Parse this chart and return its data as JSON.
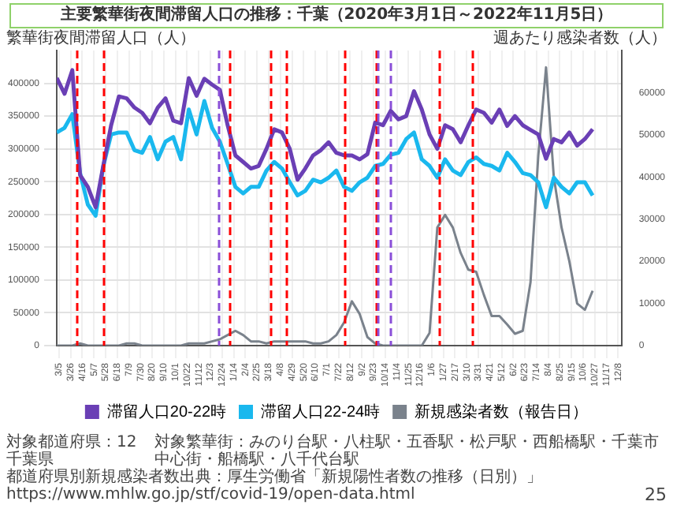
{
  "chart_data": {
    "type": "line",
    "title": "主要繁華街夜間滞留人口の推移：千葉（2020年3月1日～2022年11月5日）",
    "ylabel": "繁華街夜間滞留人口（人）",
    "y2label": "週あたり感染者数（人）",
    "x": [
      "2020-03-01",
      "2020-03-15",
      "2020-03-29",
      "2020-04-12",
      "2020-04-26",
      "2020-05-10",
      "2020-05-24",
      "2020-06-07",
      "2020-06-21",
      "2020-07-05",
      "2020-07-19",
      "2020-08-02",
      "2020-08-16",
      "2020-08-30",
      "2020-09-13",
      "2020-09-27",
      "2020-10-11",
      "2020-10-25",
      "2020-11-08",
      "2020-11-22",
      "2020-12-06",
      "2020-12-20",
      "2021-01-03",
      "2021-01-17",
      "2021-01-31",
      "2021-02-14",
      "2021-02-28",
      "2021-03-14",
      "2021-03-28",
      "2021-04-11",
      "2021-04-25",
      "2021-05-09",
      "2021-05-23",
      "2021-06-06",
      "2021-06-20",
      "2021-07-04",
      "2021-07-18",
      "2021-08-01",
      "2021-08-15",
      "2021-08-29",
      "2021-09-12",
      "2021-09-26",
      "2021-10-10",
      "2021-10-24",
      "2021-11-07",
      "2021-11-21",
      "2021-12-05",
      "2021-12-19",
      "2022-01-02",
      "2022-01-16",
      "2022-01-30",
      "2022-02-13",
      "2022-02-27",
      "2022-03-13",
      "2022-03-27",
      "2022-04-10",
      "2022-04-24",
      "2022-05-08",
      "2022-05-22",
      "2022-06-05",
      "2022-06-19",
      "2022-07-03",
      "2022-07-17",
      "2022-07-31",
      "2022-08-14",
      "2022-08-28",
      "2022-09-11",
      "2022-09-25",
      "2022-10-09",
      "2022-10-23"
    ],
    "series": [
      {
        "name": "滞留人口20-22時",
        "color": "#6a3fb5",
        "values": [
          408000,
          384000,
          420000,
          260000,
          242000,
          211000,
          275000,
          336000,
          380000,
          377000,
          363000,
          355000,
          339000,
          363000,
          377000,
          343000,
          339000,
          408000,
          381000,
          407000,
          398000,
          390000,
          336000,
          290000,
          280000,
          270000,
          274000,
          300000,
          330000,
          325000,
          300000,
          253000,
          270000,
          290000,
          298000,
          310000,
          294000,
          290000,
          290000,
          284000,
          292000,
          340000,
          336000,
          358000,
          345000,
          350000,
          388000,
          360000,
          322000,
          300000,
          336000,
          330000,
          310000,
          336000,
          360000,
          355000,
          340000,
          360000,
          335000,
          350000,
          336000,
          329000,
          322000,
          285000,
          315000,
          310000,
          325000,
          305000,
          315000,
          330000
        ]
      },
      {
        "name": "滞留人口22-24時",
        "color": "#1ab8ee",
        "values": [
          325000,
          332000,
          353000,
          263000,
          215000,
          198000,
          274000,
          322000,
          325000,
          325000,
          298000,
          294000,
          318000,
          284000,
          311000,
          318000,
          284000,
          360000,
          322000,
          373000,
          332000,
          311000,
          277000,
          242000,
          232000,
          242000,
          242000,
          267000,
          280000,
          270000,
          249000,
          229000,
          236000,
          253000,
          249000,
          256000,
          267000,
          242000,
          236000,
          249000,
          256000,
          274000,
          277000,
          291000,
          294000,
          315000,
          325000,
          284000,
          274000,
          256000,
          284000,
          267000,
          260000,
          280000,
          287000,
          277000,
          274000,
          267000,
          294000,
          280000,
          263000,
          260000,
          249000,
          211000,
          256000,
          242000,
          232000,
          249000,
          249000,
          229000
        ]
      },
      {
        "name": "新規感染者数（報告日）",
        "color": "#7a828c",
        "axis": "y2",
        "values": [
          0,
          0,
          0,
          500,
          0,
          0,
          0,
          0,
          0,
          500,
          500,
          0,
          0,
          0,
          0,
          0,
          0,
          500,
          500,
          500,
          1000,
          1500,
          2500,
          3500,
          2500,
          1000,
          1000,
          500,
          1000,
          1000,
          1000,
          1000,
          1000,
          500,
          500,
          1000,
          2500,
          5500,
          10500,
          7500,
          2000,
          500,
          0,
          0,
          0,
          0,
          0,
          0,
          3000,
          28000,
          31000,
          28000,
          22000,
          18000,
          17500,
          12000,
          7000,
          7000,
          5000,
          2800,
          3500,
          15000,
          45000,
          66000,
          40000,
          28000,
          20000,
          10000,
          8500,
          13000
        ]
      }
    ],
    "xlim": [
      "2020-03-01",
      "2022-12-14"
    ],
    "xticks": [
      {
        "value": "2020-03-05",
        "label": "3/5"
      },
      {
        "value": "2020-03-26",
        "label": "3/26"
      },
      {
        "value": "2020-04-16",
        "label": "4/16"
      },
      {
        "value": "2020-05-07",
        "label": "5/7"
      },
      {
        "value": "2020-05-28",
        "label": "5/28"
      },
      {
        "value": "2020-06-18",
        "label": "6/18"
      },
      {
        "value": "2020-07-09",
        "label": "7/9"
      },
      {
        "value": "2020-07-30",
        "label": "7/30"
      },
      {
        "value": "2020-08-20",
        "label": "8/20"
      },
      {
        "value": "2020-09-10",
        "label": "9/10"
      },
      {
        "value": "2020-10-01",
        "label": "10/1"
      },
      {
        "value": "2020-10-22",
        "label": "10/22"
      },
      {
        "value": "2020-11-12",
        "label": "11/12"
      },
      {
        "value": "2020-12-03",
        "label": "12/3"
      },
      {
        "value": "2020-12-24",
        "label": "12/24"
      },
      {
        "value": "2021-01-14",
        "label": "1/14"
      },
      {
        "value": "2021-02-04",
        "label": "2/4"
      },
      {
        "value": "2021-02-25",
        "label": "2/25"
      },
      {
        "value": "2021-03-18",
        "label": "3/18"
      },
      {
        "value": "2021-04-08",
        "label": "4/8"
      },
      {
        "value": "2021-04-29",
        "label": "4/29"
      },
      {
        "value": "2021-05-20",
        "label": "5/20"
      },
      {
        "value": "2021-06-10",
        "label": "6/10"
      },
      {
        "value": "2021-07-01",
        "label": "7/1"
      },
      {
        "value": "2021-07-22",
        "label": "7/22"
      },
      {
        "value": "2021-08-12",
        "label": "8/12"
      },
      {
        "value": "2021-09-02",
        "label": "9/2"
      },
      {
        "value": "2021-09-23",
        "label": "9/23"
      },
      {
        "value": "2021-10-14",
        "label": "10/14"
      },
      {
        "value": "2021-11-04",
        "label": "11/4"
      },
      {
        "value": "2021-11-25",
        "label": "11/25"
      },
      {
        "value": "2021-12-16",
        "label": "12/16"
      },
      {
        "value": "2022-01-06",
        "label": "1/6"
      },
      {
        "value": "2022-01-27",
        "label": "1/27"
      },
      {
        "value": "2022-02-17",
        "label": "2/17"
      },
      {
        "value": "2022-03-10",
        "label": "3/10"
      },
      {
        "value": "2022-03-31",
        "label": "3/31"
      },
      {
        "value": "2022-04-21",
        "label": "4/21"
      },
      {
        "value": "2022-05-12",
        "label": "5/12"
      },
      {
        "value": "2022-06-02",
        "label": "6/2"
      },
      {
        "value": "2022-06-23",
        "label": "6/23"
      },
      {
        "value": "2022-07-14",
        "label": "7/14"
      },
      {
        "value": "2022-08-04",
        "label": "8/4"
      },
      {
        "value": "2022-08-25",
        "label": "8/25"
      },
      {
        "value": "2022-09-15",
        "label": "9/15"
      },
      {
        "value": "2022-10-06",
        "label": "10/6"
      },
      {
        "value": "2022-10-27",
        "label": "10/27"
      },
      {
        "value": "2022-11-17",
        "label": "11/17"
      },
      {
        "value": "2022-12-08",
        "label": "12/8"
      }
    ],
    "ylim": [
      0,
      450000
    ],
    "yticks": [
      0,
      50000,
      100000,
      150000,
      200000,
      250000,
      300000,
      350000,
      400000
    ],
    "y2lim": [
      0,
      70000
    ],
    "y2ticks": [
      0,
      10000,
      20000,
      30000,
      40000,
      50000,
      60000
    ],
    "ref_lines": [
      {
        "axis": "x",
        "value": "2020-04-07",
        "color": "#ff0000",
        "line_style": "dashed"
      },
      {
        "axis": "x",
        "value": "2020-05-25",
        "color": "#ff0000",
        "line_style": "dashed"
      },
      {
        "axis": "x",
        "value": "2020-12-18",
        "color": "#8a4fd8",
        "line_style": "dashed"
      },
      {
        "axis": "x",
        "value": "2021-01-08",
        "color": "#ff0000",
        "line_style": "dashed"
      },
      {
        "axis": "x",
        "value": "2021-03-21",
        "color": "#ff0000",
        "line_style": "dashed"
      },
      {
        "axis": "x",
        "value": "2021-04-20",
        "color": "#ff0000",
        "line_style": "dashed"
      },
      {
        "axis": "x",
        "value": "2021-08-02",
        "color": "#ff0000",
        "line_style": "dashed"
      },
      {
        "axis": "x",
        "value": "2021-09-30",
        "color": "#ff0000",
        "line_style": "dashed"
      },
      {
        "axis": "x",
        "value": "2021-10-01",
        "color": "#8a4fd8",
        "line_style": "dashed"
      },
      {
        "axis": "x",
        "value": "2021-10-25",
        "color": "#8a4fd8",
        "line_style": "dashed"
      },
      {
        "axis": "x",
        "value": "2022-01-21",
        "color": "#ff0000",
        "line_style": "dashed"
      },
      {
        "axis": "x",
        "value": "2022-03-21",
        "color": "#ff0000",
        "line_style": "dashed"
      }
    ],
    "annotations": [
      "対象都道府県：12 千葉県",
      "対象繁華街：みのり台駅・八柱駅・五香駅・松戸駅・西船橋駅・千葉市中心街・船橋駅・八千代台駅",
      "都道府県別新規感染者数出典：厚生労働省「新規陽性者数の推移（日別）」https://www.mhlw.go.jp/stf/covid-19/open-data.html",
      "25"
    ],
    "grid": true,
    "legend": "bottom",
    "marker": "none",
    "line_style": "solid"
  }
}
